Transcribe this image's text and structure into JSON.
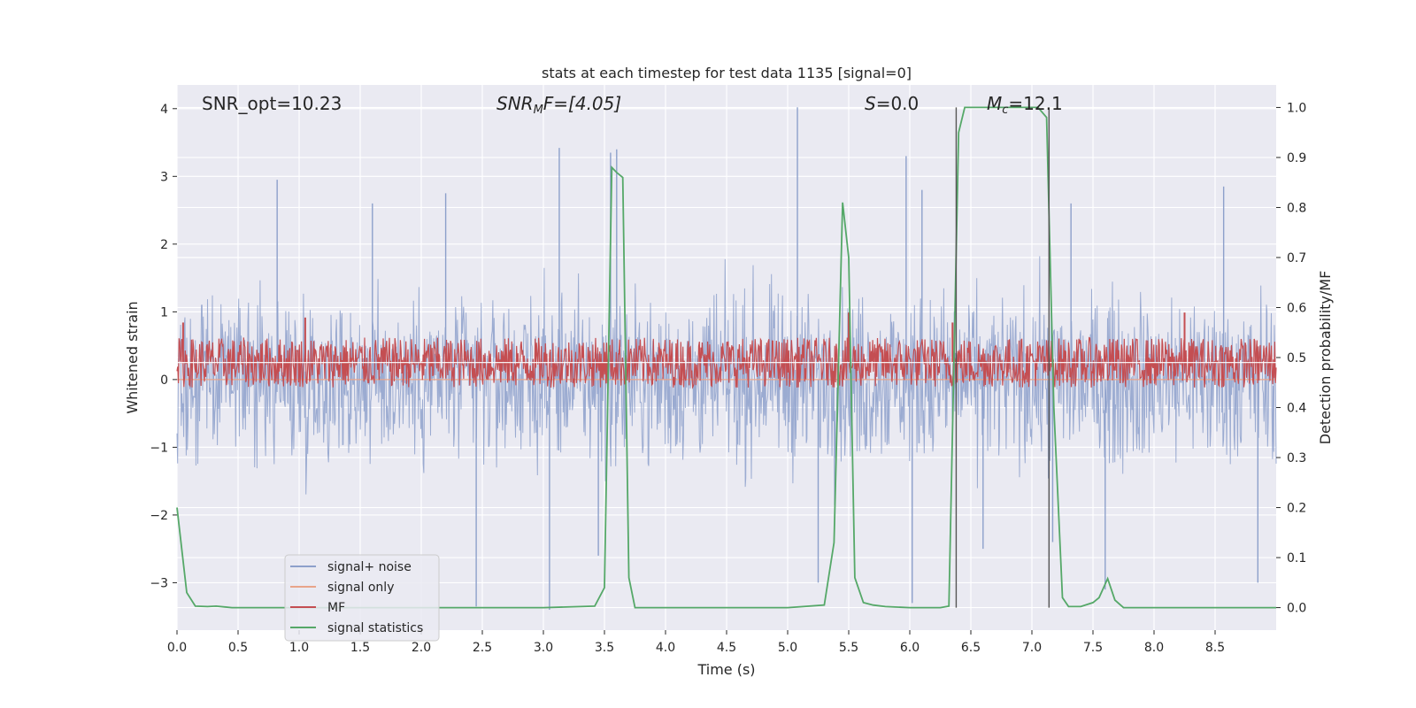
{
  "chart_data": {
    "type": "line",
    "title": "stats at each timestep for test data 1135 [signal=0]",
    "xlabel": "Time (s)",
    "ylabel": "Whitened strain",
    "y2label": "Detection probability/MF",
    "xlim": [
      0,
      9.0
    ],
    "ylim": [
      -3.7,
      4.35
    ],
    "y2lim": [
      -0.045,
      1.045
    ],
    "xticks": [
      "0.0",
      "0.5",
      "1.0",
      "1.5",
      "2.0",
      "2.5",
      "3.0",
      "3.5",
      "4.0",
      "4.5",
      "5.0",
      "5.5",
      "6.0",
      "6.5",
      "7.0",
      "7.5",
      "8.0",
      "8.5"
    ],
    "yticks": [
      "4",
      "3",
      "2",
      "1",
      "0",
      "−1",
      "−2",
      "−3"
    ],
    "y2ticks": [
      "1.0",
      "0.9",
      "0.8",
      "0.7",
      "0.6",
      "0.5",
      "0.4",
      "0.3",
      "0.2",
      "0.1",
      "0.0"
    ],
    "grid": true,
    "legend_position": "lower-left",
    "annotations": {
      "snr_opt": "SNR_opt=10.23",
      "snr_mf_sym": "SNR",
      "snr_mf_sub": "M",
      "snr_mf_rest": "F=[4.05]",
      "s_sym": "S",
      "s_rest": "=0.0",
      "mc_sym": "M",
      "mc_sub": "c",
      "mc_rest": "=12.1"
    },
    "vertical_lines_x": [
      6.38,
      7.14
    ],
    "series": [
      {
        "name": "signal+ noise",
        "color": "#8da0cb",
        "description": "whitened noise, roughly within ±2 with spikes",
        "envelope_upper": 1.9,
        "envelope_lower": -1.9,
        "spikes": [
          [
            0.82,
            2.95
          ],
          [
            1.6,
            2.6
          ],
          [
            2.2,
            2.75
          ],
          [
            3.13,
            3.42
          ],
          [
            3.55,
            3.35
          ],
          [
            3.6,
            3.4
          ],
          [
            5.08,
            4.02
          ],
          [
            5.97,
            3.3
          ],
          [
            6.1,
            2.8
          ],
          [
            7.32,
            2.6
          ],
          [
            8.57,
            2.85
          ],
          [
            2.45,
            -3.35
          ],
          [
            3.05,
            -3.4
          ],
          [
            3.45,
            -2.6
          ],
          [
            5.25,
            -3.0
          ],
          [
            6.02,
            -3.3
          ],
          [
            6.6,
            -2.5
          ],
          [
            7.17,
            -2.4
          ],
          [
            7.6,
            -3.1
          ],
          [
            8.85,
            -3.0
          ]
        ]
      },
      {
        "name": "signal only",
        "color": "#e8a48a",
        "values_note": "flat at 0"
      },
      {
        "name": "MF",
        "color": "#c44e52",
        "axis": "right",
        "baseline": 0.49,
        "amplitude": 0.05,
        "spikes": [
          [
            0.05,
            0.57
          ],
          [
            1.05,
            0.58
          ],
          [
            5.5,
            0.59
          ],
          [
            6.35,
            0.57
          ],
          [
            8.25,
            0.59
          ]
        ]
      },
      {
        "name": "signal statistics",
        "color": "#55a868",
        "axis": "right",
        "x": [
          0.0,
          0.08,
          0.15,
          0.25,
          0.32,
          0.45,
          1.0,
          2.0,
          3.0,
          3.42,
          3.5,
          3.56,
          3.6,
          3.65,
          3.7,
          3.75,
          4.0,
          5.0,
          5.3,
          5.38,
          5.45,
          5.5,
          5.55,
          5.62,
          5.7,
          5.8,
          6.0,
          6.25,
          6.32,
          6.4,
          6.45,
          6.5,
          6.9,
          7.05,
          7.12,
          7.18,
          7.25,
          7.3,
          7.4,
          7.5,
          7.55,
          7.62,
          7.68,
          7.75,
          8.0,
          9.0
        ],
        "values": [
          0.2,
          0.03,
          0.003,
          0.002,
          0.003,
          0.0,
          0.0,
          0.0,
          0.0,
          0.003,
          0.04,
          0.88,
          0.87,
          0.86,
          0.06,
          0.0,
          0.0,
          0.0,
          0.005,
          0.13,
          0.81,
          0.7,
          0.06,
          0.01,
          0.005,
          0.002,
          0.0,
          0.0,
          0.003,
          0.95,
          1.0,
          1.0,
          1.0,
          1.0,
          0.98,
          0.4,
          0.02,
          0.002,
          0.002,
          0.01,
          0.02,
          0.058,
          0.015,
          0.0,
          0.0,
          0.0
        ]
      }
    ]
  }
}
